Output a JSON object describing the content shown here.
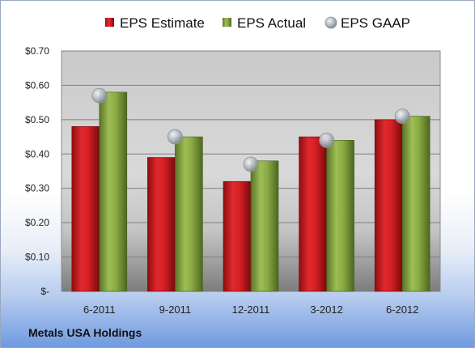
{
  "company": "Metals USA Holdings",
  "chart_data": {
    "type": "bar",
    "title": "",
    "xlabel": "",
    "ylabel": "",
    "categories": [
      "6-2011",
      "9-2011",
      "12-2011",
      "3-2012",
      "6-2012"
    ],
    "series": [
      {
        "name": "EPS Estimate",
        "kind": "bar",
        "values": [
          0.48,
          0.39,
          0.32,
          0.45,
          0.5
        ],
        "color": "#c0171b"
      },
      {
        "name": "EPS Actual",
        "kind": "bar",
        "values": [
          0.58,
          0.45,
          0.38,
          0.44,
          0.51
        ],
        "color": "#7a9a3a"
      },
      {
        "name": "EPS GAAP",
        "kind": "marker",
        "values": [
          0.57,
          0.45,
          0.37,
          0.44,
          0.51
        ],
        "color": "#a8aeb8"
      }
    ],
    "ylim": [
      0,
      0.7
    ],
    "yticks": [
      0,
      0.1,
      0.2,
      0.3,
      0.4,
      0.5,
      0.6,
      0.7
    ],
    "ytick_labels": [
      "$-",
      "$0.10",
      "$0.20",
      "$0.30",
      "$0.40",
      "$0.50",
      "$0.60",
      "$0.70"
    ],
    "grid": true,
    "legend": "top"
  }
}
